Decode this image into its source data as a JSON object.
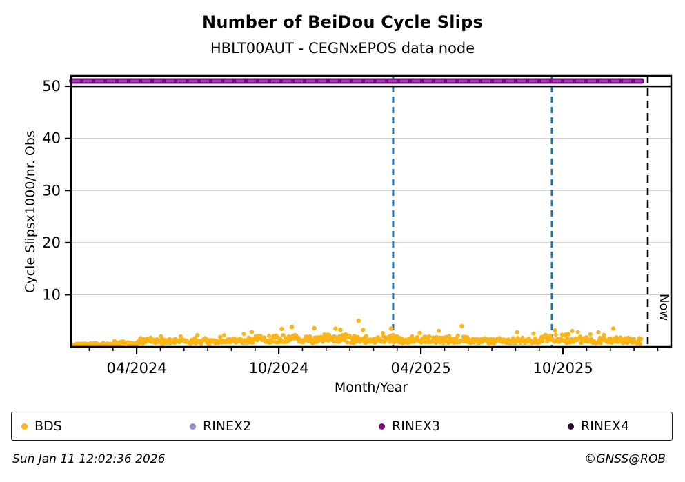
{
  "figure": {
    "title": "Number of BeiDou Cycle Slips",
    "subtitle": "HBLT00AUT - CEGNxEPOS data node",
    "footer_left": "Sun Jan 11 12:02:36 2026",
    "footer_right": "©GNSS@ROB"
  },
  "chart_data": {
    "type": "scatter",
    "title": "Number of BeiDou Cycle Slips",
    "subtitle": "HBLT00AUT - CEGNxEPOS data node",
    "xlabel": "Month/Year",
    "ylabel": "Cycle Slipsx1000/nr. Obs",
    "ylim": [
      0,
      52
    ],
    "x_domain_months_since_2024_01": [
      0.23,
      25.57
    ],
    "grid": "horizontal",
    "grid_color": "#c8c8c8",
    "yticks": [
      10,
      20,
      30,
      40,
      50
    ],
    "xticks_major": [
      {
        "m": 3,
        "label": "04/2024"
      },
      {
        "m": 9,
        "label": "10/2024"
      },
      {
        "m": 15,
        "label": "04/2025"
      },
      {
        "m": 21,
        "label": "10/2025"
      }
    ],
    "xticks_minor_months": [
      1,
      2,
      4,
      5,
      6,
      7,
      8,
      10,
      11,
      12,
      13,
      14,
      16,
      17,
      18,
      19,
      20,
      22,
      23,
      24,
      25
    ],
    "reference_lines": {
      "cap_line_value": 50,
      "cap_line_color": "#000000",
      "event_lines_m": [
        13.83,
        20.53
      ],
      "event_line_color": "#2272b8",
      "now_line_m": 24.58,
      "now_label": "Now",
      "now_line_color": "#000000"
    },
    "series": [
      {
        "name": "BDS",
        "color": "#FDB515",
        "kind": "scatter-band",
        "visible": true,
        "m_start": 0.26,
        "m_end": 24.32,
        "points_per_month": 30,
        "seed": 42,
        "monthly_means": [
          0.45,
          0.5,
          0.7,
          1.2,
          1.15,
          1.0,
          1.0,
          1.3,
          1.6,
          1.6,
          1.5,
          1.7,
          1.5,
          1.6,
          1.5,
          1.4,
          1.5,
          1.3,
          1.3,
          1.4,
          1.7,
          1.5,
          1.3,
          1.3,
          1.2
        ],
        "outliers": [
          [
            9.55,
            3.8
          ],
          [
            10.5,
            3.6
          ],
          [
            11.6,
            3.3
          ],
          [
            12.37,
            5.0
          ],
          [
            13.75,
            3.5
          ]
        ]
      },
      {
        "name": "RINEX2",
        "color": "#8f8fc9",
        "kind": "scatter",
        "visible": false,
        "points": []
      },
      {
        "name": "RINEX3",
        "color": "#76077e",
        "dash_color": "#a13cae",
        "kind": "horizontal-band",
        "visible": true,
        "value": 51,
        "m_start": 0.26,
        "m_end": 24.32
      },
      {
        "name": "RINEX4",
        "color": "#2b0b2e",
        "kind": "scatter",
        "visible": false,
        "points": []
      }
    ],
    "legend": [
      {
        "label": "BDS",
        "color": "#FDB515"
      },
      {
        "label": "RINEX2",
        "color": "#8f8fc9"
      },
      {
        "label": "RINEX3",
        "color": "#7b0b81"
      },
      {
        "label": "RINEX4",
        "color": "#2b0b2e"
      }
    ],
    "legend_position": "bottom"
  }
}
